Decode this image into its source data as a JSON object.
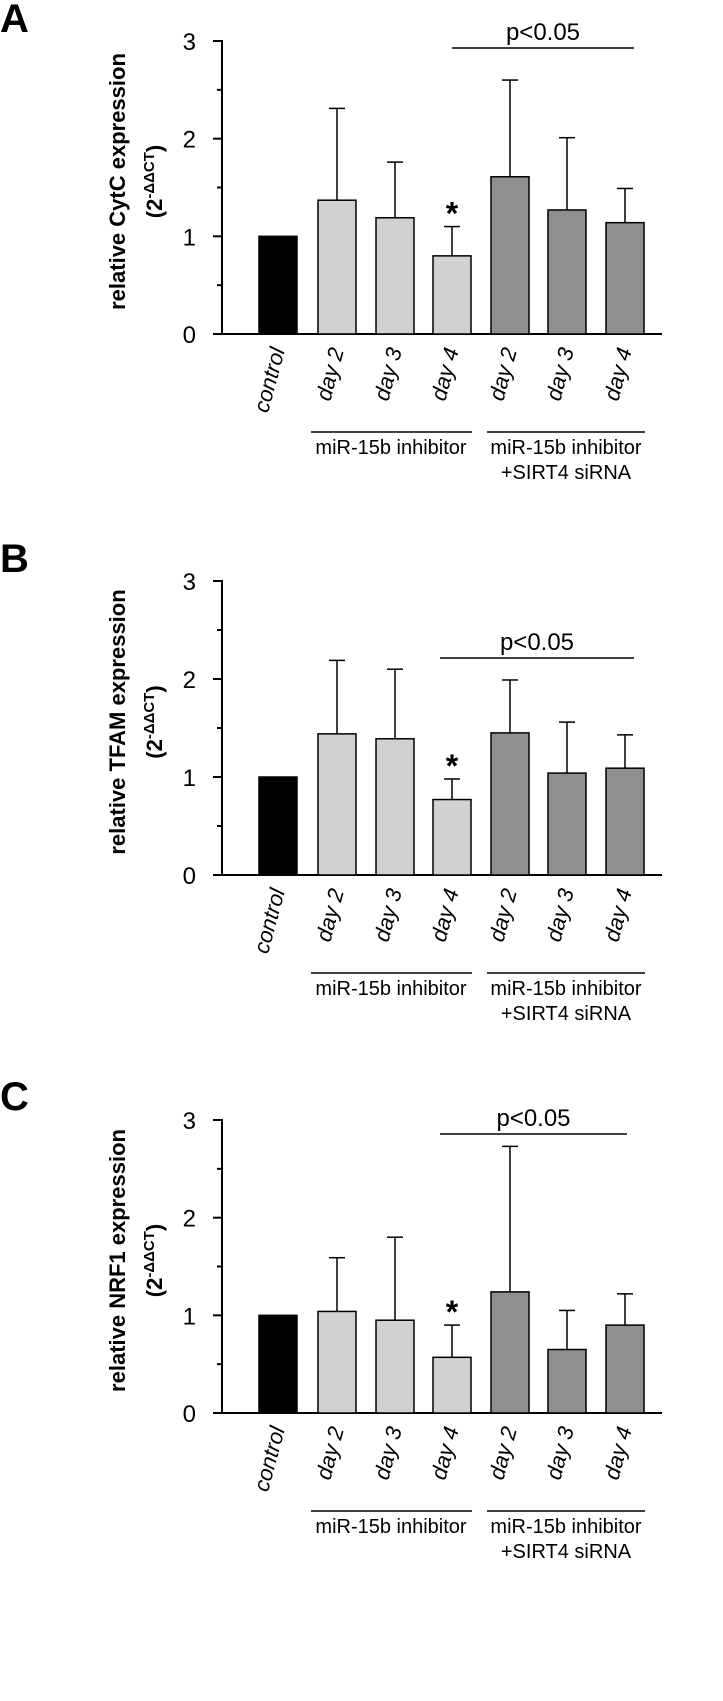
{
  "chart_data": [
    {
      "type": "bar",
      "panel_label": "A",
      "ylabel": "relative CytC expression",
      "ylabel_unit": "(2-ΔΔCT)",
      "ylim": [
        0,
        3
      ],
      "yticks": [
        "0",
        "1",
        "2",
        "3"
      ],
      "categories": [
        "control",
        "day 2",
        "day 3",
        "day 4",
        "day 2",
        "day 3",
        "day 4"
      ],
      "values": [
        1.0,
        1.37,
        1.19,
        0.8,
        1.61,
        1.27,
        1.14
      ],
      "error_upper": [
        null,
        2.31,
        1.76,
        1.1,
        2.6,
        2.01,
        1.49
      ],
      "bar_colors": [
        "#000000",
        "#d1d1d1",
        "#d1d1d1",
        "#d1d1d1",
        "#8f8f8f",
        "#8f8f8f",
        "#8f8f8f"
      ],
      "significance_marker": "*",
      "significance_index": 3,
      "bracket_label": "p<0.05",
      "group_labels": [
        {
          "lines": [
            "miR-15b inhibitor"
          ]
        },
        {
          "lines": [
            "miR-15b inhibitor",
            "+SIRT4 siRNA"
          ]
        }
      ]
    },
    {
      "type": "bar",
      "panel_label": "B",
      "ylabel": "relative TFAM expression",
      "ylabel_unit": "(2-ΔΔCT)",
      "ylim": [
        0,
        3
      ],
      "yticks": [
        "0",
        "1",
        "2",
        "3"
      ],
      "categories": [
        "control",
        "day 2",
        "day 3",
        "day 4",
        "day 2",
        "day 3",
        "day 4"
      ],
      "values": [
        1.0,
        1.44,
        1.39,
        0.77,
        1.45,
        1.04,
        1.09
      ],
      "error_upper": [
        null,
        2.19,
        2.1,
        0.98,
        1.99,
        1.56,
        1.43
      ],
      "bar_colors": [
        "#000000",
        "#d1d1d1",
        "#d1d1d1",
        "#d1d1d1",
        "#8f8f8f",
        "#8f8f8f",
        "#8f8f8f"
      ],
      "significance_marker": "*",
      "significance_index": 3,
      "bracket_label": "p<0.05",
      "group_labels": [
        {
          "lines": [
            "miR-15b inhibitor"
          ]
        },
        {
          "lines": [
            "miR-15b inhibitor",
            "+SIRT4 siRNA"
          ]
        }
      ]
    },
    {
      "type": "bar",
      "panel_label": "C",
      "ylabel": "relative NRF1 expression",
      "ylabel_unit": "(2-ΔΔCT)",
      "ylim": [
        0,
        3
      ],
      "yticks": [
        "0",
        "1",
        "2",
        "3"
      ],
      "categories": [
        "control",
        "day 2",
        "day 3",
        "day 4",
        "day 2",
        "day 3",
        "day 4"
      ],
      "values": [
        1.0,
        1.04,
        0.95,
        0.57,
        1.24,
        0.65,
        0.9
      ],
      "error_upper": [
        null,
        1.59,
        1.8,
        0.9,
        2.73,
        1.05,
        1.22
      ],
      "bar_colors": [
        "#000000",
        "#d1d1d1",
        "#d1d1d1",
        "#d1d1d1",
        "#8f8f8f",
        "#8f8f8f",
        "#8f8f8f"
      ],
      "significance_marker": "*",
      "significance_index": 3,
      "bracket_label": "p<0.05",
      "group_labels": [
        {
          "lines": [
            "miR-15b inhibitor"
          ]
        },
        {
          "lines": [
            "miR-15b inhibitor",
            "+SIRT4 siRNA"
          ]
        }
      ]
    }
  ]
}
